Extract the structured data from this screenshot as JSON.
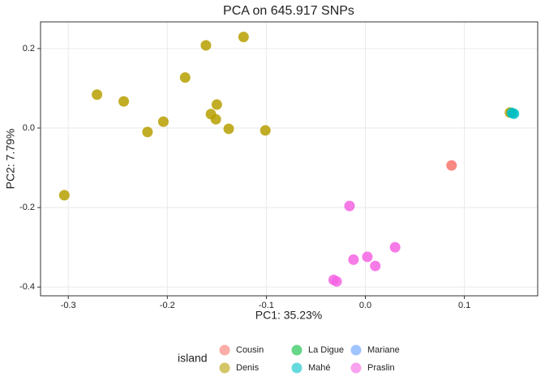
{
  "chart_data": {
    "type": "scatter",
    "title": "PCA on 645.917 SNPs",
    "x_label": "PC1: 35.23%",
    "y_label": "PC2: 7.79%",
    "legend_title": "island",
    "xlim": [
      -0.328,
      0.174
    ],
    "ylim": [
      -0.422,
      0.267
    ],
    "xticks": [
      -0.3,
      -0.2,
      -0.1,
      {
        "value": 0,
        "label": "0.0"
      },
      0.1
    ],
    "yticks": [
      -0.4,
      -0.2,
      {
        "value": 0,
        "label": "0.0"
      },
      0.2
    ],
    "grid": true,
    "series": [
      {
        "name": "Cousin",
        "color": "#F8766D",
        "x": [
          0.087
        ],
        "values": [
          -0.094
        ]
      },
      {
        "name": "Denis",
        "color": "#B79F00",
        "x": [
          -0.161,
          -0.123,
          -0.182,
          -0.271,
          -0.244,
          -0.15,
          -0.156,
          -0.151,
          -0.204,
          -0.22,
          -0.138,
          -0.101,
          -0.304,
          0.146
        ],
        "values": [
          0.208,
          0.229,
          0.127,
          0.084,
          0.067,
          0.059,
          0.035,
          0.022,
          0.016,
          -0.01,
          -0.002,
          -0.006,
          -0.169,
          0.039
        ]
      },
      {
        "name": "La Digue",
        "color": "#00BA38",
        "x": [],
        "values": []
      },
      {
        "name": "Mahé",
        "color": "#00BFC4",
        "x": [
          0.148,
          0.15
        ],
        "values": [
          0.038,
          0.036
        ]
      },
      {
        "name": "Mariane",
        "color": "#619CFF",
        "x": [],
        "values": []
      },
      {
        "name": "Praslin",
        "color": "#F564E3",
        "x": [
          -0.016,
          0.03,
          -0.012,
          0.002,
          0.01,
          -0.032,
          -0.029
        ],
        "values": [
          -0.196,
          -0.3,
          -0.331,
          -0.324,
          -0.347,
          -0.382,
          -0.386
        ]
      }
    ]
  }
}
